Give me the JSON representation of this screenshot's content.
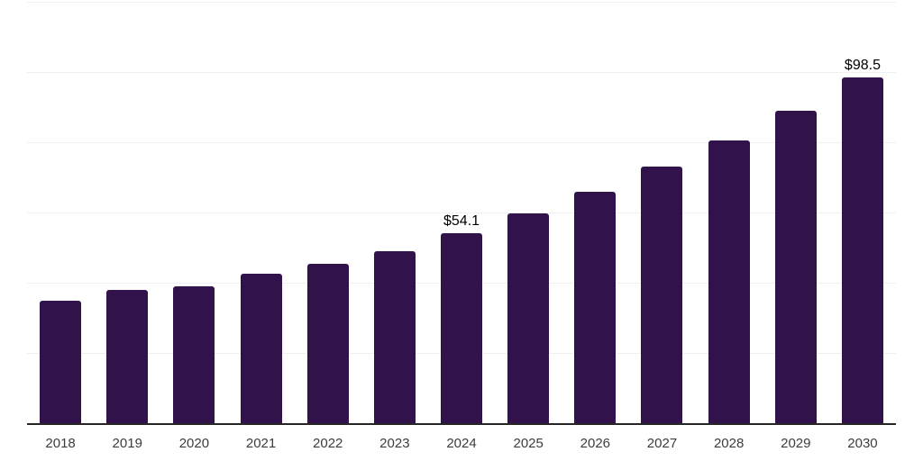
{
  "chart_data": {
    "type": "bar",
    "title": "",
    "xlabel": "",
    "ylabel": "",
    "categories": [
      "2018",
      "2019",
      "2020",
      "2021",
      "2022",
      "2023",
      "2024",
      "2025",
      "2026",
      "2027",
      "2028",
      "2029",
      "2030"
    ],
    "values": [
      34.9,
      37.9,
      38.9,
      42.5,
      45.5,
      49.1,
      54.1,
      59.8,
      65.9,
      73.0,
      80.4,
      89.1,
      98.5
    ],
    "data_labels": {
      "2024": "$54.1",
      "2030": "$98.5"
    },
    "ylim": [
      0,
      120
    ],
    "gridline_step": 20,
    "grid": true,
    "legend": "none",
    "bar_color": "#32124b",
    "gridline_color": "#f0f0f0",
    "axis_line_color": "#262626",
    "tick_label_color": "#3c3c3c",
    "data_label_color": "#000000"
  }
}
